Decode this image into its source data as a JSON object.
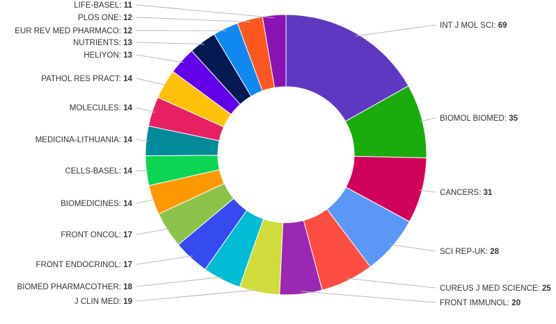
{
  "chart_data": {
    "type": "pie",
    "variant": "donut",
    "slices": [
      {
        "label": "INT J MOL SCI",
        "value": 69,
        "color": "#5f38c2"
      },
      {
        "label": "BIOMOL BIOMED",
        "value": 35,
        "color": "#1aab0d"
      },
      {
        "label": "CANCERS",
        "value": 31,
        "color": "#d0025a"
      },
      {
        "label": "SCI REP-UK",
        "value": 28,
        "color": "#5b98f5"
      },
      {
        "label": "CUREUS J MED SCIENCE",
        "value": 25,
        "color": "#fd4c41"
      },
      {
        "label": "FRONT IMMUNOL",
        "value": 20,
        "color": "#9b28b2"
      },
      {
        "label": "J CLIN MED",
        "value": 19,
        "color": "#cfdc3b"
      },
      {
        "label": "BIOMED PHARMACOTHER",
        "value": 18,
        "color": "#00bcd4"
      },
      {
        "label": "FRONT ENDOCRINOL",
        "value": 17,
        "color": "#354bf0"
      },
      {
        "label": "FRONT ONCOL",
        "value": 17,
        "color": "#8bc34a"
      },
      {
        "label": "BIOMEDICINES",
        "value": 14,
        "color": "#fe9800"
      },
      {
        "label": "CELLS-BASEL",
        "value": 14,
        "color": "#0ed454"
      },
      {
        "label": "MEDICINA-LITHUANIA",
        "value": 14,
        "color": "#028a9b"
      },
      {
        "label": "MOLECULES",
        "value": 14,
        "color": "#e91f64"
      },
      {
        "label": "PATHOL RES PRACT",
        "value": 14,
        "color": "#ffc107"
      },
      {
        "label": "HELIYON",
        "value": 13,
        "color": "#6200ea"
      },
      {
        "label": "NUTRIENTS",
        "value": 13,
        "color": "#051a52"
      },
      {
        "label": "EUR REV MED PHARMACO",
        "value": 12,
        "color": "#0f88ef"
      },
      {
        "label": "PLOS ONE",
        "value": 12,
        "color": "#fc5721"
      },
      {
        "label": "LIFE-BASEL",
        "value": 11,
        "color": "#8a13b4"
      }
    ],
    "legend": "none"
  }
}
